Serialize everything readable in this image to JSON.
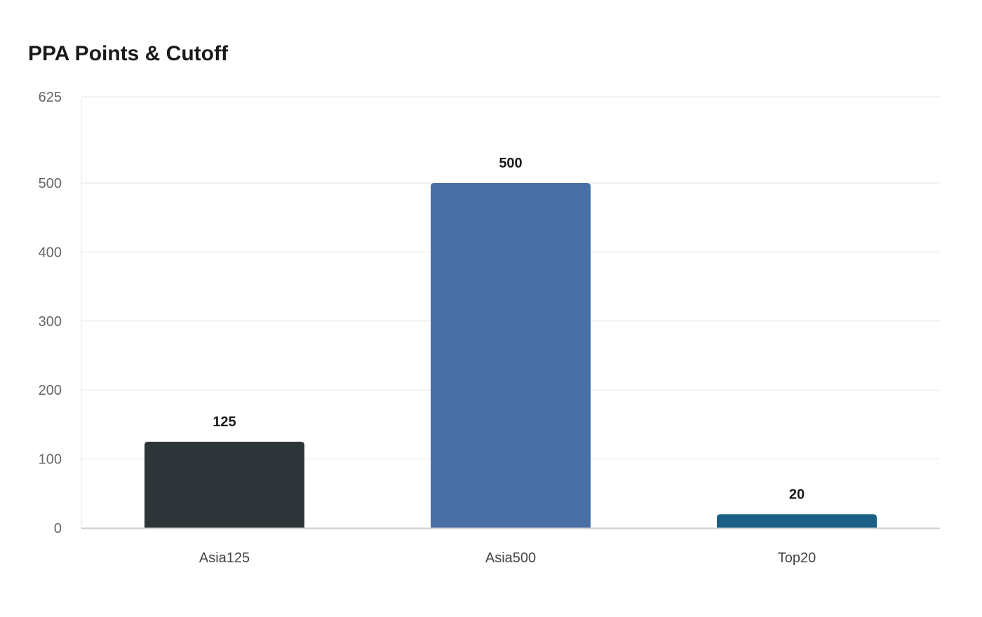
{
  "chart_data": {
    "type": "bar",
    "title": "PPA Points & Cutoff",
    "xlabel": "",
    "ylabel": "",
    "categories": [
      "Asia125",
      "Asia500",
      "Top20"
    ],
    "values": [
      125,
      500,
      20
    ],
    "colors": [
      "#2e3538",
      "#4a6fa5",
      "#1a5f85"
    ],
    "ylim": [
      0,
      625
    ],
    "yticks": [
      0,
      100,
      200,
      300,
      400,
      500,
      625
    ],
    "grid": true,
    "data_labels": [
      "125",
      "500",
      "20"
    ]
  }
}
